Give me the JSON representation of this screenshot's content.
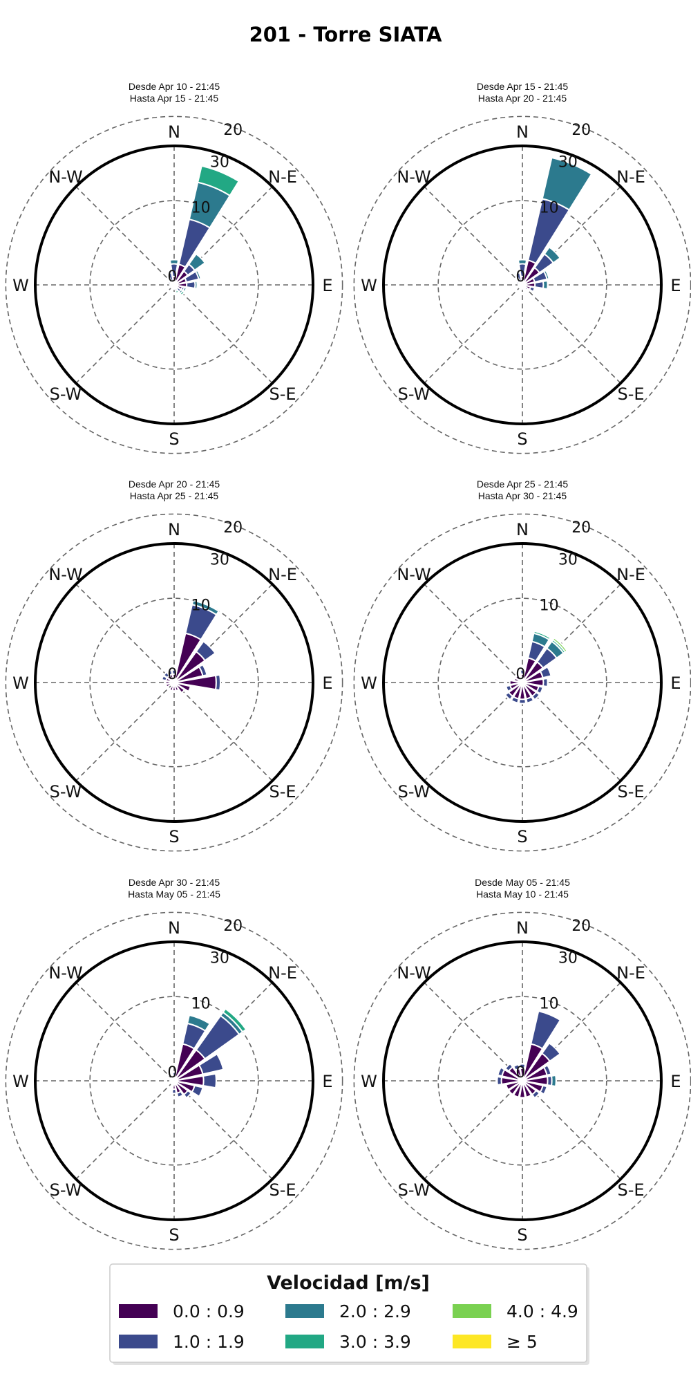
{
  "title": "201 - Torre SIATA",
  "legend": {
    "title": "Velocidad [m/s]",
    "bins": [
      {
        "label": "0.0 : 0.9",
        "color": "#440154"
      },
      {
        "label": "1.0 : 1.9",
        "color": "#3b4a8c"
      },
      {
        "label": "2.0 : 2.9",
        "color": "#2c7a8e"
      },
      {
        "label": "3.0 : 3.9",
        "color": "#22a884"
      },
      {
        "label": "4.0 : 4.9",
        "color": "#7ad151"
      },
      {
        "label": "≥ 5",
        "color": "#fde725"
      }
    ]
  },
  "chart_data": [
    {
      "type": "windrose",
      "subtitle": [
        "Desde Apr 10 - 21:45",
        "Hasta Apr 15 - 21:45"
      ],
      "directions": [
        "N",
        "N-E",
        "E",
        "S-E",
        "S",
        "S-W",
        "W",
        "N-W"
      ],
      "radial_ticks": [
        "0",
        "10",
        "20",
        "30"
      ],
      "rmax": 33,
      "sector_angles": [
        0,
        22.5,
        45,
        67.5,
        90,
        112.5,
        135,
        157.5,
        180,
        202.5,
        225,
        247.5,
        270,
        292.5,
        315,
        337.5
      ],
      "series": [
        {
          "name": "0.0 : 0.9",
          "values": [
            2,
            5,
            4,
            3,
            3,
            2,
            1,
            1,
            1,
            1,
            1,
            1,
            1,
            1,
            1,
            1
          ]
        },
        {
          "name": "1.0 : 1.9",
          "values": [
            3,
            11,
            2,
            3,
            2,
            0.5,
            1,
            0,
            0,
            0,
            0,
            0,
            0,
            0.5,
            0.5,
            2
          ]
        },
        {
          "name": "2.0 : 2.9",
          "values": [
            1,
            9,
            3,
            0.5,
            0.5,
            0.5,
            0.5,
            0.5,
            0,
            0,
            0,
            0,
            0,
            0,
            0,
            0
          ]
        },
        {
          "name": "3.0 : 3.9",
          "values": [
            0,
            4,
            0,
            0,
            0,
            0,
            0.5,
            0.5,
            0,
            0,
            0,
            0,
            0,
            0,
            0,
            0
          ]
        },
        {
          "name": "4.0 : 4.9",
          "values": [
            0,
            0,
            0,
            0,
            0,
            0,
            0,
            0,
            0,
            0,
            0,
            0,
            0,
            0,
            0,
            0
          ]
        },
        {
          "name": "≥ 5",
          "values": [
            0,
            0,
            0,
            0,
            0,
            0,
            0,
            0,
            0,
            0,
            0,
            0,
            0,
            0,
            0,
            0
          ]
        }
      ]
    },
    {
      "type": "windrose",
      "subtitle": [
        "Desde Apr 15 - 21:45",
        "Hasta Apr 20 - 21:45"
      ],
      "directions": [
        "N",
        "N-E",
        "E",
        "S-E",
        "S",
        "S-W",
        "W",
        "N-W"
      ],
      "radial_ticks": [
        "0",
        "10",
        "20",
        "30"
      ],
      "rmax": 33,
      "sector_angles": [
        0,
        22.5,
        45,
        67.5,
        90,
        112.5,
        135,
        157.5,
        180,
        202.5,
        225,
        247.5,
        270,
        292.5,
        315,
        337.5
      ],
      "series": [
        {
          "name": "0.0 : 0.9",
          "values": [
            2,
            6,
            5,
            3,
            3,
            2,
            1,
            1,
            1,
            1,
            1,
            1,
            1,
            1,
            1,
            1
          ]
        },
        {
          "name": "1.0 : 1.9",
          "values": [
            3,
            15,
            4,
            3,
            2,
            1,
            0.5,
            0,
            0,
            0,
            0,
            0,
            0,
            0.5,
            0.5,
            2
          ]
        },
        {
          "name": "2.0 : 2.9",
          "values": [
            1,
            10,
            2,
            0.5,
            1,
            0,
            0,
            0,
            0,
            0,
            0,
            0,
            0,
            0,
            0,
            0
          ]
        },
        {
          "name": "3.0 : 3.9",
          "values": [
            0,
            0,
            0,
            0,
            0,
            0,
            0,
            0,
            0,
            0,
            0,
            0,
            0,
            0,
            0,
            0
          ]
        },
        {
          "name": "4.0 : 4.9",
          "values": [
            0,
            0,
            0,
            0,
            0,
            0,
            0,
            0,
            0,
            0,
            0,
            0,
            0,
            0,
            0,
            0
          ]
        },
        {
          "name": "≥ 5",
          "values": [
            0,
            0,
            0,
            0,
            0,
            0,
            0,
            0,
            0,
            0,
            0,
            0,
            0,
            0,
            0,
            0
          ]
        }
      ]
    },
    {
      "type": "windrose",
      "subtitle": [
        "Desde Apr 20 - 21:45",
        "Hasta Apr 25 - 21:45"
      ],
      "directions": [
        "N",
        "N-E",
        "E",
        "S-E",
        "S",
        "S-W",
        "W",
        "N-W"
      ],
      "radial_ticks": [
        "0",
        "10",
        "20",
        "30"
      ],
      "rmax": 33,
      "sector_angles": [
        0,
        22.5,
        45,
        67.5,
        90,
        112.5,
        135,
        157.5,
        180,
        202.5,
        225,
        247.5,
        270,
        292.5,
        315,
        337.5
      ],
      "series": [
        {
          "name": "0.0 : 0.9",
          "values": [
            2,
            12,
            9,
            7,
            10,
            4,
            3,
            2,
            2,
            2,
            1,
            2,
            2,
            2,
            2,
            2
          ]
        },
        {
          "name": "1.0 : 1.9",
          "values": [
            1,
            7,
            3,
            1,
            1,
            0,
            0,
            0,
            0,
            0,
            0,
            0,
            0,
            1,
            1,
            1
          ]
        },
        {
          "name": "2.0 : 2.9",
          "values": [
            0,
            1,
            0,
            0,
            0,
            0,
            0,
            0,
            0,
            0,
            0,
            0,
            0,
            0,
            0,
            0
          ]
        },
        {
          "name": "3.0 : 3.9",
          "values": [
            0,
            0,
            0,
            0,
            0,
            0,
            0,
            0,
            0,
            0,
            0,
            0,
            0,
            0,
            0,
            0
          ]
        },
        {
          "name": "4.0 : 4.9",
          "values": [
            0,
            0,
            0,
            0,
            0,
            0,
            0,
            0,
            0,
            0,
            0,
            0,
            0,
            0,
            0,
            0
          ]
        },
        {
          "name": "≥ 5",
          "values": [
            0,
            0,
            0,
            0,
            0,
            0,
            0,
            0,
            0,
            0,
            0,
            0,
            0,
            0,
            0,
            0
          ]
        }
      ]
    },
    {
      "type": "windrose",
      "subtitle": [
        "Desde Apr 25 - 21:45",
        "Hasta Apr 30 - 21:45"
      ],
      "directions": [
        "N",
        "N-E",
        "E",
        "S-E",
        "S",
        "S-W",
        "W",
        "N-W"
      ],
      "radial_ticks": [
        "0",
        "10",
        "20",
        "30"
      ],
      "rmax": 33,
      "sector_angles": [
        0,
        22.5,
        45,
        67.5,
        90,
        112.5,
        135,
        157.5,
        180,
        202.5,
        225,
        247.5,
        270,
        292.5,
        315,
        337.5
      ],
      "series": [
        {
          "name": "0.0 : 0.9",
          "values": [
            2,
            6,
            6,
            5,
            5,
            4,
            4,
            4,
            4,
            4,
            4,
            3,
            3,
            2,
            2,
            1
          ]
        },
        {
          "name": "1.0 : 1.9",
          "values": [
            1,
            4,
            4,
            2,
            1,
            1,
            1,
            1,
            1,
            1,
            1,
            1,
            0,
            0,
            0,
            0
          ]
        },
        {
          "name": "2.0 : 2.9",
          "values": [
            0,
            2,
            2,
            0,
            0,
            0,
            0,
            0,
            0,
            0,
            0,
            0,
            0,
            0,
            0,
            0
          ]
        },
        {
          "name": "3.0 : 3.9",
          "values": [
            0,
            0.5,
            0.5,
            0,
            0,
            0,
            0,
            0,
            0,
            0,
            0,
            0,
            0,
            0,
            0,
            0
          ]
        },
        {
          "name": "4.0 : 4.9",
          "values": [
            0,
            0,
            0.5,
            0,
            0,
            0,
            0,
            0,
            0,
            0,
            0,
            0,
            0,
            0,
            0,
            0
          ]
        },
        {
          "name": "≥ 5",
          "values": [
            0,
            0,
            0,
            0,
            0,
            0,
            0,
            0,
            0,
            0,
            0,
            0,
            0,
            0,
            0,
            0
          ]
        }
      ]
    },
    {
      "type": "windrose",
      "subtitle": [
        "Desde Apr 30 - 21:45",
        "Hasta May 05 - 21:45"
      ],
      "directions": [
        "N",
        "N-E",
        "E",
        "S-E",
        "S",
        "S-W",
        "W",
        "N-W"
      ],
      "radial_ticks": [
        "0",
        "10",
        "20",
        "30"
      ],
      "rmax": 33,
      "sector_angles": [
        0,
        22.5,
        45,
        67.5,
        90,
        112.5,
        135,
        157.5,
        180,
        202.5,
        225,
        247.5,
        270,
        292.5,
        315,
        337.5
      ],
      "series": [
        {
          "name": "0.0 : 0.9",
          "values": [
            1,
            9,
            9,
            7,
            7,
            5,
            4,
            3,
            2,
            1,
            1,
            1,
            1,
            1,
            1,
            1
          ]
        },
        {
          "name": "1.0 : 1.9",
          "values": [
            1,
            5,
            10,
            5,
            3,
            2,
            1,
            1,
            1,
            0,
            0,
            0,
            0,
            0,
            0,
            0
          ]
        },
        {
          "name": "2.0 : 2.9",
          "values": [
            0,
            2,
            1,
            0,
            0,
            0,
            0,
            0,
            0,
            0,
            0,
            0,
            0,
            0,
            0,
            0
          ]
        },
        {
          "name": "3.0 : 3.9",
          "values": [
            0,
            0,
            1,
            0,
            0,
            0,
            0,
            0,
            0,
            0,
            0,
            0,
            0,
            0,
            0,
            0
          ]
        },
        {
          "name": "4.0 : 4.9",
          "values": [
            0,
            0,
            0,
            0,
            0,
            0,
            0,
            0,
            0,
            0,
            0,
            0,
            0,
            0,
            0,
            0
          ]
        },
        {
          "name": "≥ 5",
          "values": [
            0,
            0,
            0,
            0,
            0,
            0,
            0,
            0,
            0,
            0,
            0,
            0,
            0,
            0,
            0,
            0
          ]
        }
      ]
    },
    {
      "type": "windrose",
      "subtitle": [
        "Desde May 05 - 21:45",
        "Hasta May 10 - 21:45"
      ],
      "directions": [
        "N",
        "N-E",
        "E",
        "S-E",
        "S",
        "S-W",
        "W",
        "N-W"
      ],
      "radial_ticks": [
        "0",
        "10",
        "20",
        "30"
      ],
      "rmax": 33,
      "sector_angles": [
        0,
        22.5,
        45,
        67.5,
        90,
        112.5,
        135,
        157.5,
        180,
        202.5,
        225,
        247.5,
        270,
        292.5,
        315,
        337.5
      ],
      "series": [
        {
          "name": "0.0 : 0.9",
          "values": [
            3,
            9,
            8,
            6,
            6,
            5,
            4,
            4,
            4,
            4,
            4,
            4,
            5,
            5,
            4,
            3
          ]
        },
        {
          "name": "1.0 : 1.9",
          "values": [
            1,
            8,
            3,
            1,
            1,
            1,
            1,
            0,
            0,
            0,
            0,
            0,
            1,
            1,
            1,
            1
          ]
        },
        {
          "name": "2.0 : 2.9",
          "values": [
            0,
            0,
            0,
            0,
            1,
            0,
            0,
            0,
            0,
            0,
            0,
            0,
            0,
            0,
            0,
            0
          ]
        },
        {
          "name": "3.0 : 3.9",
          "values": [
            0,
            0,
            0,
            0,
            0,
            0,
            0,
            0,
            0,
            0,
            0,
            0,
            0,
            0,
            0,
            0
          ]
        },
        {
          "name": "4.0 : 4.9",
          "values": [
            0,
            0,
            0,
            0,
            0,
            0,
            0,
            0,
            0,
            0,
            0,
            0,
            0,
            0,
            0,
            0
          ]
        },
        {
          "name": "≥ 5",
          "values": [
            0,
            0,
            0,
            0,
            0,
            0,
            0,
            0,
            0,
            0,
            0,
            0,
            0,
            0,
            0,
            0
          ]
        }
      ]
    }
  ]
}
